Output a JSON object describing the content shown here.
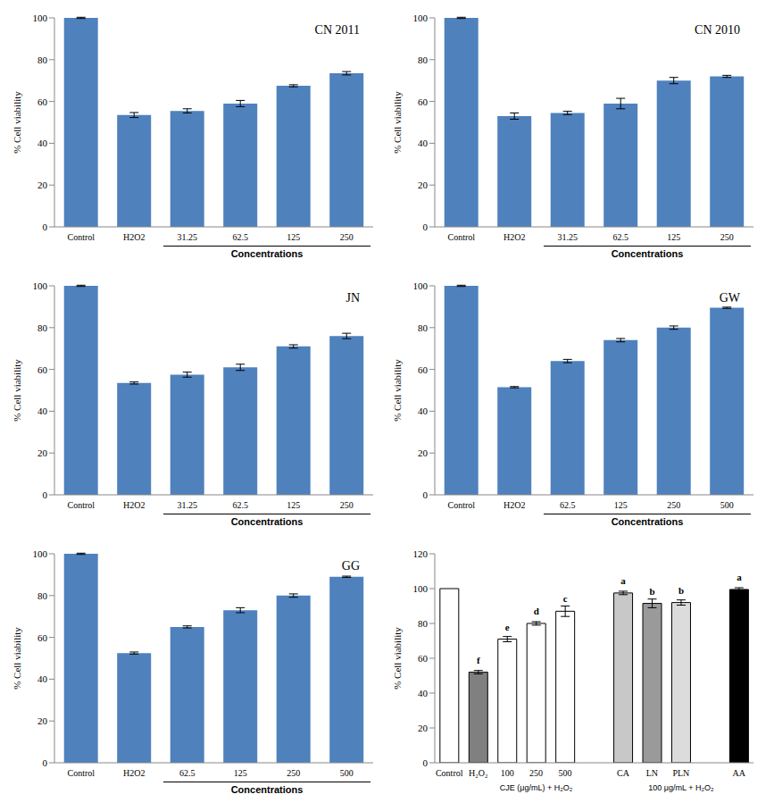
{
  "chart_data": [
    {
      "type": "bar",
      "title": "CN 2011",
      "y_label": "% Cell viability",
      "categories": [
        "Control",
        "H2O2",
        "31.25",
        "62.5",
        "125",
        "250"
      ],
      "values": [
        100,
        53.5,
        55.5,
        59,
        67.5,
        73.5
      ],
      "error": [
        0.3,
        1.2,
        1,
        1.5,
        0.5,
        0.8
      ],
      "color": "#4f81bd",
      "ylim": [
        0,
        100
      ],
      "yticks": [
        0,
        20,
        40,
        60,
        80,
        100
      ],
      "grid": false,
      "groups": [
        {
          "label": "Concentrations",
          "categories": [
            "31.25",
            "62.5",
            "125",
            "250"
          ],
          "line_style": "solid"
        }
      ]
    },
    {
      "type": "bar",
      "title": "CN 2010",
      "y_label": "% Cell viability",
      "categories": [
        "Control",
        "H2O2",
        "31.25",
        "62.5",
        "125",
        "250"
      ],
      "values": [
        100,
        53,
        54.5,
        59,
        70,
        72
      ],
      "error": [
        0.3,
        1.5,
        0.8,
        2.5,
        1.5,
        0.5
      ],
      "color": "#4f81bd",
      "ylim": [
        0,
        100
      ],
      "yticks": [
        0,
        20,
        40,
        60,
        80,
        100
      ],
      "grid": false,
      "groups": [
        {
          "label": "Concentrations",
          "categories": [
            "31.25",
            "62.5",
            "125",
            "250"
          ],
          "line_style": "solid"
        }
      ]
    },
    {
      "type": "bar",
      "title": "JN",
      "y_label": "% Cell viability",
      "categories": [
        "Control",
        "H2O2",
        "31.25",
        "62.5",
        "125",
        "250"
      ],
      "values": [
        100,
        53.5,
        57.5,
        61,
        71,
        76
      ],
      "error": [
        0.3,
        0.5,
        1.2,
        1.5,
        0.8,
        1.3
      ],
      "color": "#4f81bd",
      "ylim": [
        0,
        100
      ],
      "yticks": [
        0,
        20,
        40,
        60,
        80,
        100
      ],
      "grid": false,
      "groups": [
        {
          "label": "Concentrations",
          "categories": [
            "31.25",
            "62.5",
            "125",
            "250"
          ],
          "line_style": "solid"
        }
      ]
    },
    {
      "type": "bar",
      "title": "GW",
      "y_label": "% Cell viability",
      "categories": [
        "Control",
        "H2O2",
        "62.5",
        "125",
        "250",
        "500"
      ],
      "values": [
        100,
        51.5,
        64,
        74,
        80,
        89.5
      ],
      "error": [
        0.3,
        0.3,
        0.8,
        0.8,
        0.8,
        0.3
      ],
      "color": "#4f81bd",
      "ylim": [
        0,
        100
      ],
      "yticks": [
        0,
        20,
        40,
        60,
        80,
        100
      ],
      "grid": false,
      "groups": [
        {
          "label": "Concentrations",
          "categories": [
            "62.5",
            "125",
            "250",
            "500"
          ],
          "line_style": "solid"
        }
      ]
    },
    {
      "type": "bar",
      "title": "GG",
      "y_label": "% Cell viability",
      "categories": [
        "Control",
        "H2O2",
        "62.5",
        "125",
        "250",
        "500"
      ],
      "values": [
        100,
        52.5,
        65,
        73,
        80,
        89
      ],
      "error": [
        0.3,
        0.5,
        0.5,
        1.2,
        0.8,
        0.3
      ],
      "color": "#4f81bd",
      "ylim": [
        0,
        100
      ],
      "yticks": [
        0,
        20,
        40,
        60,
        80,
        100
      ],
      "grid": false,
      "groups": [
        {
          "label": "Concentrations",
          "categories": [
            "62.5",
            "125",
            "250",
            "500"
          ],
          "line_style": "solid"
        }
      ]
    },
    {
      "type": "bar",
      "y_label": "% Cell viability",
      "categories": [
        "Control",
        "H₂O₂",
        "100",
        "250",
        "500",
        null,
        "CA",
        "LN",
        "PLN",
        null,
        "AA"
      ],
      "values": [
        100,
        52,
        71,
        80,
        87,
        null,
        97.5,
        91.5,
        92,
        null,
        99.5
      ],
      "error": [
        null,
        1,
        1.5,
        1,
        3,
        null,
        1,
        2.5,
        1.5,
        null,
        1
      ],
      "annotations": [
        null,
        "f",
        "e",
        "d",
        "c",
        null,
        "a",
        "b",
        "b",
        null,
        "a"
      ],
      "colors": [
        "#ffffff",
        "#808080",
        "#ffffff",
        "#ffffff",
        "#ffffff",
        null,
        "#c8c8c8",
        "#9a9a9a",
        "#dcdcdc",
        null,
        "#000000"
      ],
      "ylim": [
        0,
        120
      ],
      "yticks": [
        0,
        20,
        40,
        60,
        80,
        100,
        120
      ],
      "grid": false,
      "groups": [
        {
          "label": "CJE (μg/mL) + H₂O₂",
          "categories": [
            "100",
            "250",
            "500"
          ]
        },
        {
          "label": "100 μg/mL + H₂O₂",
          "categories": [
            "CA",
            "LN",
            "PLN",
            "AA"
          ]
        }
      ]
    }
  ]
}
